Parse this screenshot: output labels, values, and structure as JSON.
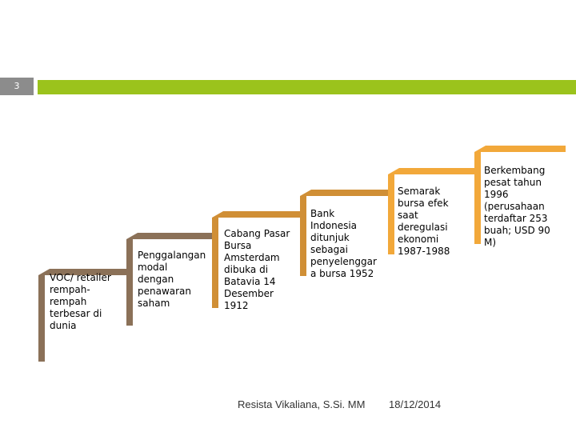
{
  "slide": {
    "number": "3"
  },
  "colors": {
    "accent_bar": "#9bc31c",
    "number_box": "#8c8c8c",
    "step_1": "#8b7158",
    "step_2": "#8b7158",
    "step_3": "#d08f36",
    "step_4": "#d08f36",
    "step_5": "#f2a83a",
    "step_6": "#f2a83a"
  },
  "steps": [
    {
      "text": "VOC/ retailer rempah-rempah terbesar di dunia"
    },
    {
      "text": "Penggalangan modal dengan penawaran saham"
    },
    {
      "text": "Cabang Pasar Bursa Amsterdam dibuka di Batavia 14 Desember 1912"
    },
    {
      "text": "Bank Indonesia ditunjuk sebagai penyelenggar a bursa 1952"
    },
    {
      "text": "Semarak bursa efek saat deregulasi ekonomi 1987-1988"
    },
    {
      "text": "Berkembang pesat tahun 1996 (perusahaan terdaftar 253 buah; USD 90 M)"
    }
  ],
  "footer": {
    "author": "Resista Vikaliana, S.Si. MM",
    "date": "18/12/2014"
  }
}
